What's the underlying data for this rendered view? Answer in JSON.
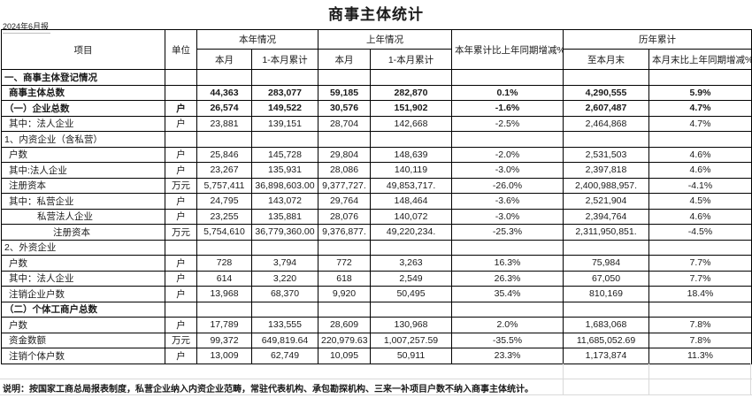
{
  "meta": {
    "title": "商事主体统计",
    "period": "2024年6月报"
  },
  "header": {
    "item": "项目",
    "unit": "单位",
    "this_year_group": "本年情况",
    "last_year_group": "上年情况",
    "month": "本月",
    "month_cumulative": "1-本月累计",
    "yoy_change": "本年累计比上年同期增减%",
    "historical_group": "历年累计",
    "to_month_end": "至本月末",
    "month_end_yoy": "本月末比上年同期增减%"
  },
  "rows": [
    {
      "label": "一、商事主体登记情况",
      "bold": true,
      "indent": 0,
      "unit": "",
      "values": [
        "",
        "",
        "",
        "",
        "",
        "",
        ""
      ]
    },
    {
      "label": "商事主体总数",
      "bold": true,
      "indent": 1,
      "unit": "",
      "values": [
        "44,363",
        "283,077",
        "59,185",
        "282,870",
        "0.1%",
        "4,290,555",
        "5.9%"
      ]
    },
    {
      "label": "（一）企业总数",
      "bold": true,
      "indent": 0,
      "unit": "户",
      "values": [
        "26,574",
        "149,522",
        "30,576",
        "151,902",
        "-1.6%",
        "2,607,487",
        "4.7%"
      ]
    },
    {
      "label": "其中：法人企业",
      "bold": false,
      "indent": 1,
      "unit": "户",
      "values": [
        "23,881",
        "139,151",
        "28,704",
        "142,668",
        "-2.5%",
        "2,464,868",
        "4.7%"
      ]
    },
    {
      "label": "1、内资企业（含私营）",
      "bold": false,
      "indent": 0,
      "unit": "",
      "values": [
        "",
        "",
        "",
        "",
        "",
        "",
        ""
      ]
    },
    {
      "label": "户数",
      "bold": false,
      "indent": 1,
      "unit": "户",
      "values": [
        "25,846",
        "145,728",
        "29,804",
        "148,639",
        "-2.0%",
        "2,531,503",
        "4.6%"
      ]
    },
    {
      "label": "其中:法人企业",
      "bold": false,
      "indent": 1,
      "unit": "户",
      "values": [
        "23,267",
        "135,931",
        "28,086",
        "140,119",
        "-3.0%",
        "2,397,818",
        "4.6%"
      ]
    },
    {
      "label": "注册资本",
      "bold": false,
      "indent": 1,
      "unit": "万元",
      "values": [
        "5,757,411",
        "36,898,603.00",
        "9,377,727.",
        "49,853,717.",
        "-26.0%",
        "2,400,988,957.",
        "-4.1%"
      ]
    },
    {
      "label": "其中：私营企业",
      "bold": false,
      "indent": 1,
      "unit": "户",
      "values": [
        "24,795",
        "143,072",
        "29,764",
        "148,464",
        "-3.6%",
        "2,521,904",
        "4.5%"
      ]
    },
    {
      "label": "私营法人企业",
      "bold": false,
      "indent": 2,
      "unit": "户",
      "values": [
        "23,255",
        "135,881",
        "28,076",
        "140,072",
        "-3.0%",
        "2,394,764",
        "4.6%"
      ]
    },
    {
      "label": "注册资本",
      "bold": false,
      "indent": 3,
      "unit": "万元",
      "values": [
        "5,754,610",
        "36,779,360.00",
        "9,376,877.",
        "49,220,234.",
        "-25.3%",
        "2,311,950,851.",
        "-4.5%"
      ]
    },
    {
      "label": "2、外资企业",
      "bold": false,
      "indent": 0,
      "unit": "",
      "values": [
        "",
        "",
        "",
        "",
        "",
        "",
        ""
      ]
    },
    {
      "label": "户数",
      "bold": false,
      "indent": 1,
      "unit": "户",
      "values": [
        "728",
        "3,794",
        "772",
        "3,263",
        "16.3%",
        "75,984",
        "7.7%"
      ]
    },
    {
      "label": "其中：法人企业",
      "bold": false,
      "indent": 1,
      "unit": "户",
      "values": [
        "614",
        "3,220",
        "618",
        "2,549",
        "26.3%",
        "67,050",
        "7.7%"
      ]
    },
    {
      "label": "注销企业户数",
      "bold": false,
      "indent": 1,
      "unit": "户",
      "values": [
        "13,968",
        "68,370",
        "9,920",
        "50,495",
        "35.4%",
        "810,169",
        "18.4%"
      ]
    },
    {
      "label": "（二）个体工商户总数",
      "bold": true,
      "indent": 0,
      "unit": "",
      "values": [
        "",
        "",
        "",
        "",
        "",
        "",
        ""
      ]
    },
    {
      "label": "户数",
      "bold": false,
      "indent": 1,
      "unit": "户",
      "values": [
        "17,789",
        "133,555",
        "28,609",
        "130,968",
        "2.0%",
        "1,683,068",
        "7.8%"
      ]
    },
    {
      "label": "资金数额",
      "bold": false,
      "indent": 1,
      "unit": "万元",
      "values": [
        "99,372",
        "649,819.64",
        "220,979.63",
        "1,007,257.59",
        "-35.5%",
        "11,685,052.69",
        "7.8%"
      ]
    },
    {
      "label": "注销个体户数",
      "bold": false,
      "indent": 1,
      "unit": "户",
      "values": [
        "13,009",
        "62,749",
        "10,095",
        "50,911",
        "23.3%",
        "1,173,874",
        "11.3%"
      ]
    }
  ],
  "footer": {
    "note": "说明：按国家工商总局报表制度，私营企业纳入内资企业范畴，常驻代表机构、承包勘探机构、三来一补项目户数不纳入商事主体统计。"
  }
}
